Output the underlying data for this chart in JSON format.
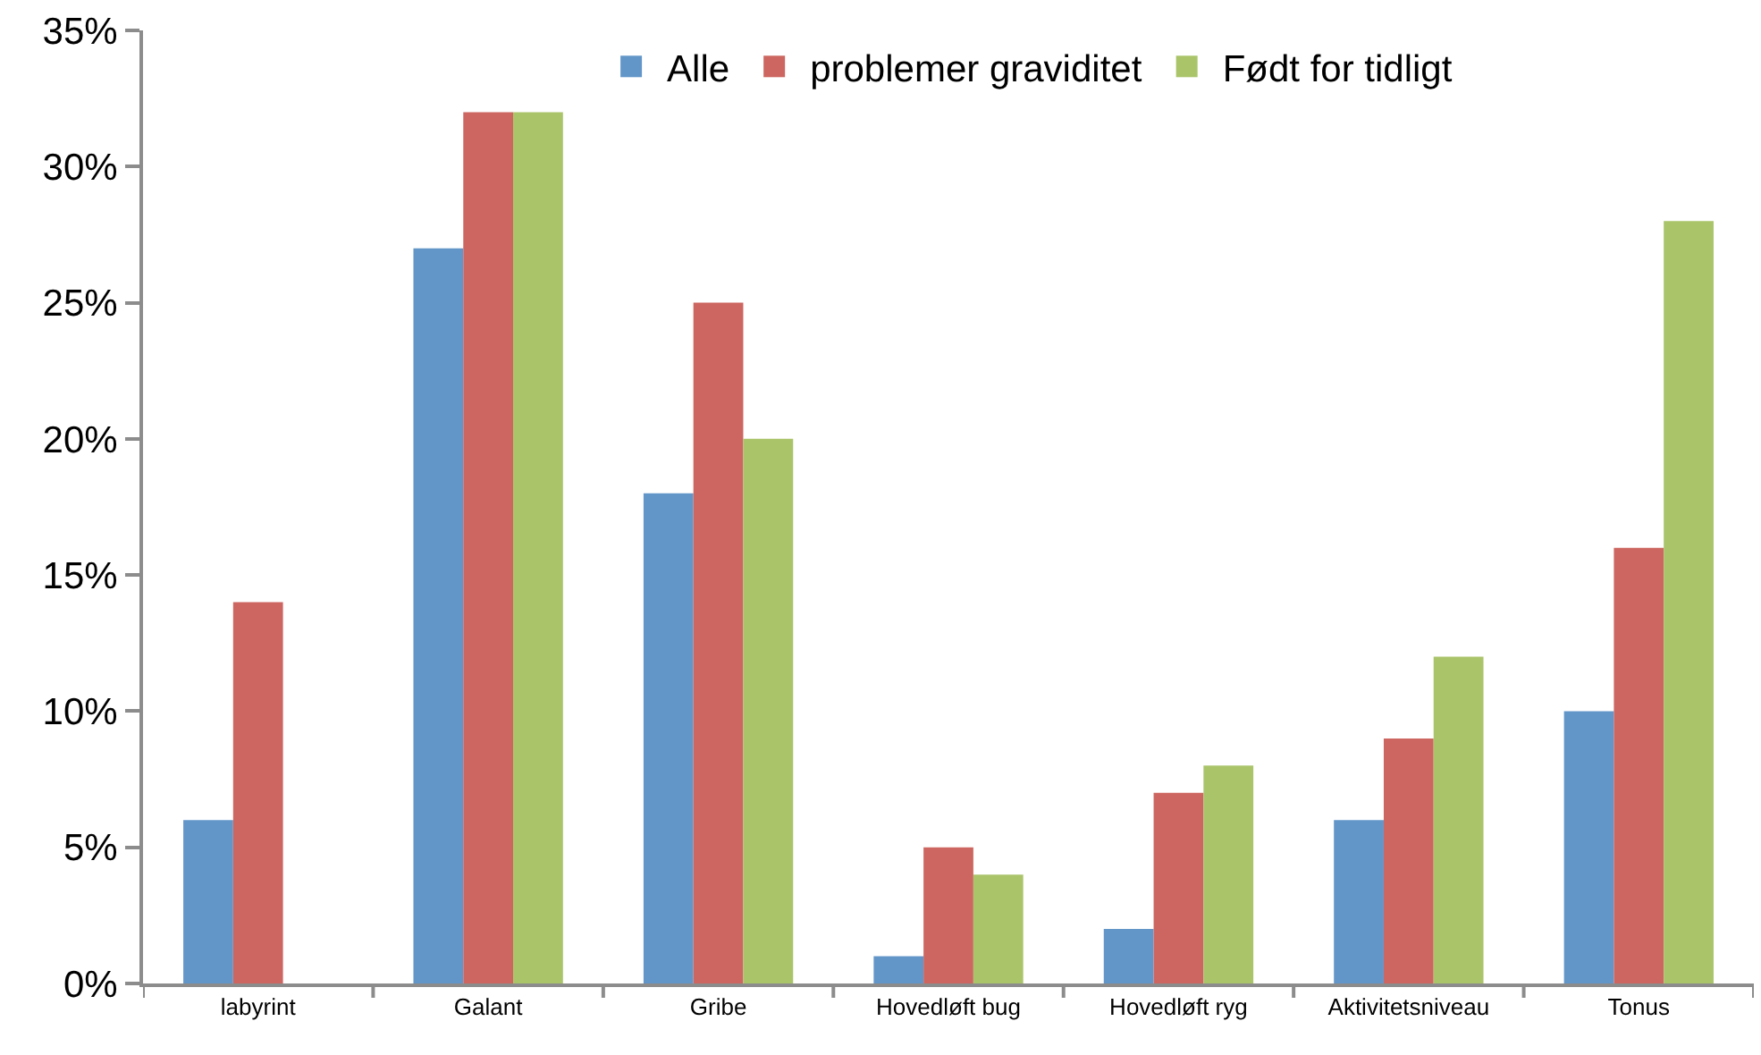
{
  "chart_data": {
    "type": "bar",
    "categories": [
      "labyrint",
      "Galant",
      "Gribe",
      "Hovedløft bug",
      "Hovedløft ryg",
      "Aktivitetsniveau",
      "Tonus"
    ],
    "series": [
      {
        "name": "Alle",
        "color": "#6296c9",
        "values": [
          6,
          27,
          18,
          1,
          2,
          6,
          10
        ]
      },
      {
        "name": "problemer graviditet",
        "color": "#cd6660",
        "values": [
          14,
          32,
          25,
          5,
          7,
          9,
          16
        ]
      },
      {
        "name": "Født for tidligt",
        "color": "#aac46a",
        "values": [
          null,
          32,
          20,
          4,
          8,
          12,
          28
        ]
      }
    ],
    "ylim": [
      0,
      35
    ],
    "yticks": [
      {
        "value": 0,
        "label": "0%"
      },
      {
        "value": 5,
        "label": "5%"
      },
      {
        "value": 10,
        "label": "10%"
      },
      {
        "value": 15,
        "label": "15%"
      },
      {
        "value": 20,
        "label": "20%"
      },
      {
        "value": 25,
        "label": "25%"
      },
      {
        "value": 30,
        "label": "30%"
      },
      {
        "value": 35,
        "label": "35%"
      }
    ],
    "grid": false,
    "legend": "top"
  }
}
